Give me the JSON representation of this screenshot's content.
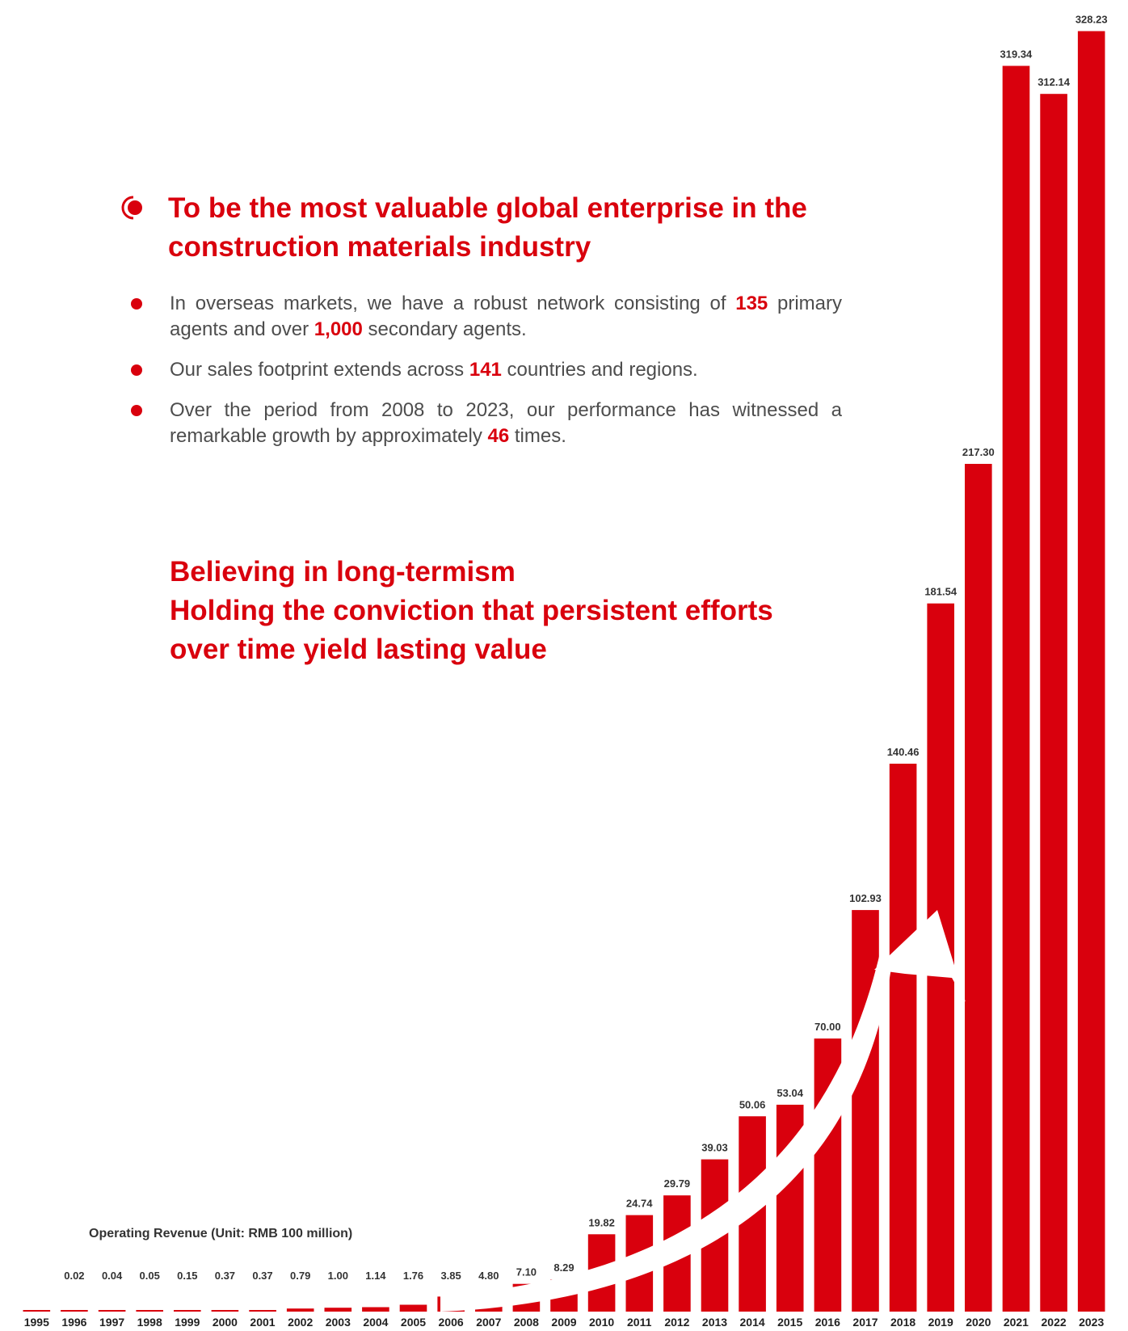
{
  "vision": {
    "title": "To be the most valuable global enterprise in the construction materials industry"
  },
  "points": [
    {
      "pre": "In overseas markets, we have a robust network consisting of ",
      "n1": "135",
      "mid": " primary agents and over ",
      "n2": "1,000",
      "post": " secondary agents."
    },
    {
      "pre": "Our sales footprint extends across ",
      "n1": "141",
      "mid": " countries and regions.",
      "n2": "",
      "post": ""
    },
    {
      "pre": "Over the period from 2008 to 2023, our performance has witnessed a remarkable growth by approximately ",
      "n1": "46",
      "mid": " times.",
      "n2": "",
      "post": ""
    }
  ],
  "motto": {
    "line1": "Believing in long-termism",
    "line2": "Holding the conviction that persistent efforts",
    "line3": "over time yield lasting value"
  },
  "colors": {
    "accent": "#d9000d",
    "body_text": "#4d4d4d"
  },
  "chart_data": {
    "type": "bar",
    "title": "Operating Revenue (Unit: RMB 100 million)",
    "categories": [
      "1995",
      "1996",
      "1997",
      "1998",
      "1999",
      "2000",
      "2001",
      "2002",
      "2003",
      "2004",
      "2005",
      "2006",
      "2007",
      "2008",
      "2009",
      "2010",
      "2011",
      "2012",
      "2013",
      "2014",
      "2015",
      "2016",
      "2017",
      "2018",
      "2019",
      "2020",
      "2021",
      "2022",
      "2023"
    ],
    "values": [
      0,
      0.02,
      0.04,
      0.05,
      0.15,
      0.37,
      0.37,
      0.79,
      1.0,
      1.14,
      1.76,
      3.85,
      4.8,
      7.1,
      8.29,
      19.82,
      24.74,
      29.79,
      39.03,
      50.06,
      53.04,
      70.0,
      102.93,
      140.46,
      181.54,
      217.3,
      319.34,
      312.14,
      328.23
    ],
    "labels": [
      "",
      "0.02",
      "0.04",
      "0.05",
      "0.15",
      "0.37",
      "0.37",
      "0.79",
      "1.00",
      "1.14",
      "1.76",
      "3.85",
      "4.80",
      "7.10",
      "8.29",
      "19.82",
      "24.74",
      "29.79",
      "39.03",
      "50.06",
      "53.04",
      "70.00",
      "102.93",
      "140.46",
      "181.54",
      "217.30",
      "319.34",
      "312.14",
      "328.23"
    ],
    "ylim": [
      0,
      330
    ],
    "grid": false,
    "bar_color": "#d9000d",
    "trend_arrow": true
  }
}
